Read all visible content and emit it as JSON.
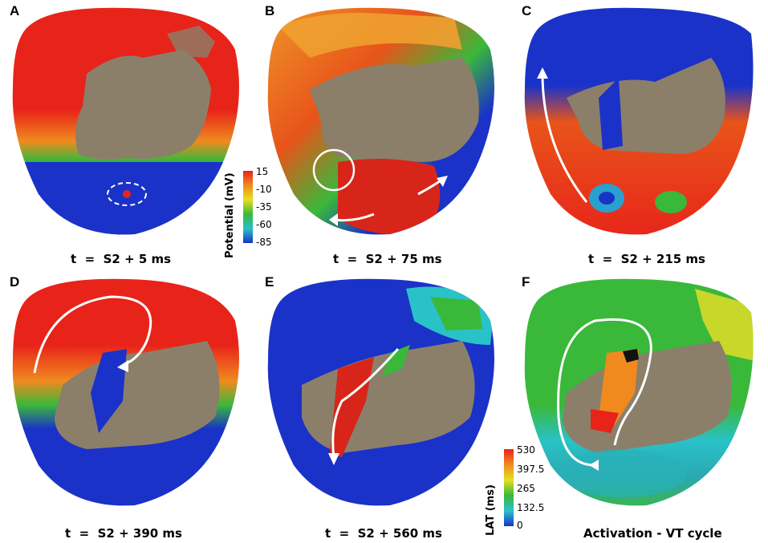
{
  "panels": [
    {
      "label": "A",
      "caption": "t  =  S2 + 5 ms"
    },
    {
      "label": "B",
      "caption": "t  =  S2 + 75 ms"
    },
    {
      "label": "C",
      "caption": "t  =  S2 + 215 ms"
    },
    {
      "label": "D",
      "caption": "t  =  S2 + 390 ms"
    },
    {
      "label": "E",
      "caption": "t  =  S2 + 560 ms"
    },
    {
      "label": "F",
      "caption": "Activation - VT cycle"
    }
  ],
  "colorbar_potential": {
    "title": "Potential (mV)",
    "ticks": [
      "15",
      "-10",
      "-35",
      "-60",
      "-85"
    ]
  },
  "colorbar_lat": {
    "title": "LAT (ms)",
    "ticks": [
      "530",
      "397.5",
      "265",
      "132.5",
      "0"
    ]
  },
  "colors": {
    "scar": "#8b7f6a",
    "red": "#e8231a",
    "orange": "#f08a1e",
    "yellow": "#e6e020",
    "green": "#3ab83a",
    "cyan": "#29c2c8",
    "blue": "#1a32c8",
    "arrow": "#ffffff"
  }
}
